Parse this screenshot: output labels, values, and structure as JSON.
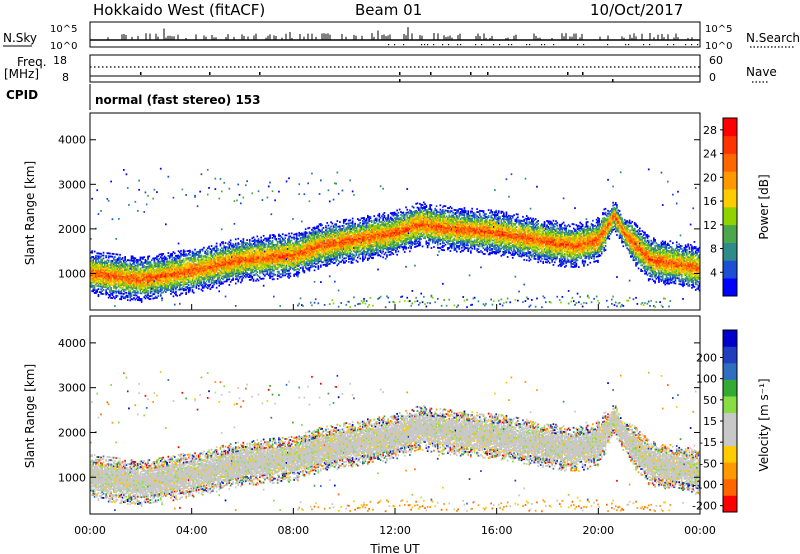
{
  "header": {
    "station": "Hokkaido West (fitACF)",
    "beam": "Beam 01",
    "date": "10/Oct/2017"
  },
  "panels": {
    "nsky": {
      "left_label": "N.Sky",
      "right_label": "N.Search",
      "top_tick": "10^5",
      "bottom_tick": "10^0"
    },
    "freq": {
      "left_label_1": "Freq.",
      "left_label_2": "[MHz]",
      "right_label": "Nave",
      "left_ticks": [
        "18",
        "8"
      ],
      "right_ticks": [
        "60",
        "0"
      ]
    },
    "cpid": {
      "label": "CPID",
      "text": "normal (fast stereo) 153"
    }
  },
  "colors": {
    "power": [
      "#0000ff",
      "#1d4fd6",
      "#2f8a8a",
      "#4ca64c",
      "#8fd400",
      "#ffcc00",
      "#ff9900",
      "#ff6600",
      "#ff3300",
      "#ff0000"
    ],
    "velocity": [
      "#ff0000",
      "#ff6600",
      "#ff9900",
      "#ffcc00",
      "#c8c8c8",
      "#c8c8c8",
      "#88dd44",
      "#33aa33",
      "#2f6fbf",
      "#1f3fbf",
      "#0000cc"
    ]
  },
  "chart_data": [
    {
      "type": "heatmap",
      "name": "power",
      "ylabel": "Slant Range [km]",
      "yticks": [
        "1000",
        "2000",
        "3000",
        "4000"
      ],
      "yticks_values": [
        1000,
        2000,
        3000,
        4000
      ],
      "ylim": [
        180,
        4600
      ],
      "xlim": [
        0,
        24
      ],
      "colorbar_label": "Power [dB]",
      "colorbar_ticks": [
        "4",
        "8",
        "12",
        "16",
        "20",
        "24",
        "28"
      ],
      "colorbar_range": [
        0,
        30
      ],
      "echo_band": {
        "hours": [
          0,
          2,
          4,
          6,
          8,
          9,
          10,
          12,
          13,
          14,
          16,
          18,
          19,
          20,
          20.6,
          21,
          22,
          23,
          24
        ],
        "range_km": [
          1000,
          850,
          1050,
          1300,
          1400,
          1600,
          1700,
          1900,
          2100,
          2000,
          1900,
          1700,
          1600,
          1750,
          2300,
          1900,
          1300,
          1200,
          1100
        ]
      }
    },
    {
      "type": "heatmap",
      "name": "velocity",
      "xlabel": "Time UT",
      "ylabel": "Slant Range [km]",
      "xticks": [
        "00:00",
        "04:00",
        "08:00",
        "12:00",
        "16:00",
        "20:00",
        "00:00"
      ],
      "xticks_values": [
        0,
        4,
        8,
        12,
        16,
        20,
        24
      ],
      "yticks": [
        "1000",
        "2000",
        "3000",
        "4000"
      ],
      "yticks_values": [
        1000,
        2000,
        3000,
        4000
      ],
      "ylim": [
        180,
        4600
      ],
      "xlim": [
        0,
        24
      ],
      "colorbar_label": "Velocity [m s⁻¹]",
      "colorbar_ticks": [
        "200",
        "100",
        "50",
        "15",
        "-15",
        "-50",
        "-100",
        "-200"
      ]
    }
  ]
}
